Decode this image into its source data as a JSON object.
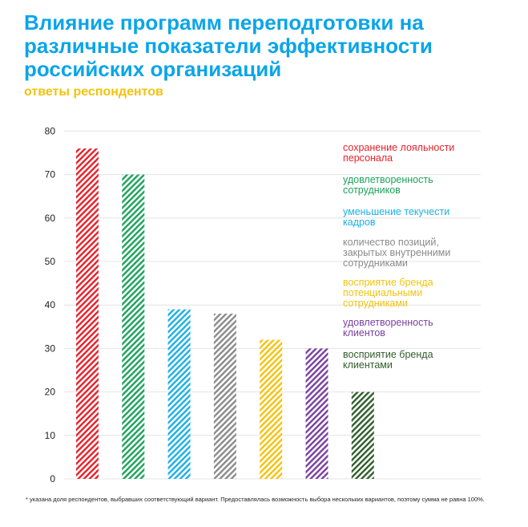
{
  "title": "Влияние программ переподготовки на различные показатели эффективности российских организаций",
  "subtitle": "ответы респондентов",
  "footnote": "* указана доля респондентов, выбравших соответствующий вариант. Предоставлялась возможность выбора нескольких вариантов, поэтому сумма не равна 100%.",
  "legend": [
    {
      "label": "сохранение лояльности\nперсонала",
      "color": "#e8202a"
    },
    {
      "label": "удовлетворенность\nсотрудников",
      "color": "#1aa35a"
    },
    {
      "label": "уменьшение текучести\nкадров",
      "color": "#1bb0e6"
    },
    {
      "label": "количество позиций,\nзакрытых внутренними\nсотрудниками",
      "color": "#8a8a8a"
    },
    {
      "label": "восприятие бренда\nпотенциальными\nсотрудниками",
      "color": "#f4c20d"
    },
    {
      "label": "удовлетворенность\nклиентов",
      "color": "#7a3fa0"
    },
    {
      "label": "восприятие бренда\nклиентами",
      "color": "#2f5e2a"
    }
  ],
  "chart_data": {
    "type": "bar",
    "categories": [
      "сохранение лояльности персонала",
      "удовлетворенность сотрудников",
      "уменьшение текучести кадров",
      "количество позиций, закрытых внутренними сотрудниками",
      "восприятие бренда потенциальными сотрудниками",
      "удовлетворенность клиентов",
      "восприятие бренда клиентами"
    ],
    "values": [
      76,
      70,
      39,
      38,
      32,
      30,
      20
    ],
    "colors": [
      "#e8202a",
      "#1aa35a",
      "#1bb0e6",
      "#8a8a8a",
      "#f4c20d",
      "#7a3fa0",
      "#2f5e2a"
    ],
    "yticks": [
      0,
      10,
      20,
      30,
      40,
      50,
      60,
      70,
      80
    ],
    "ylim": [
      0,
      80
    ],
    "grid": true,
    "legend_position": "right",
    "pattern": "diagonal-hatch"
  }
}
